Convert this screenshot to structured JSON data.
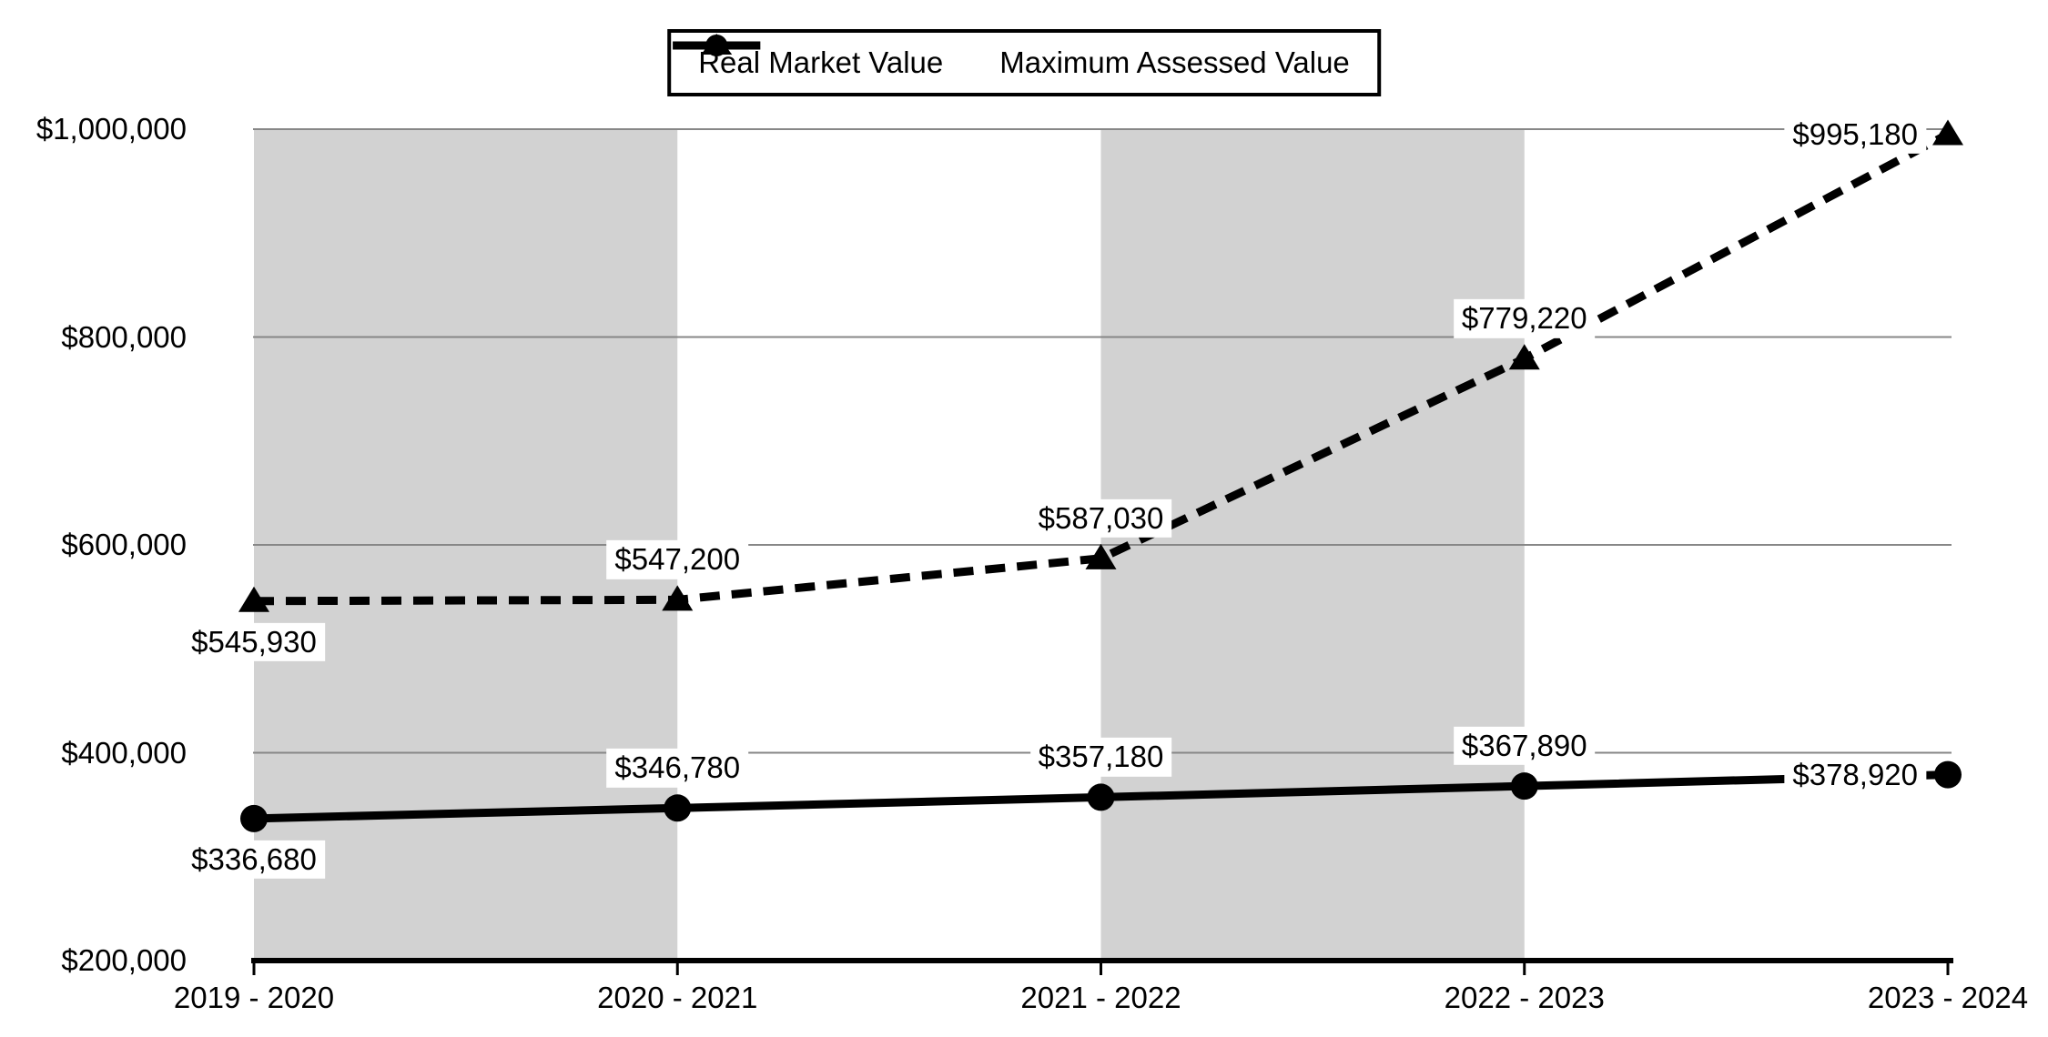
{
  "chart_data": {
    "type": "line",
    "title": "",
    "x_categories": [
      "2019 - 2020",
      "2020 - 2021",
      "2021 - 2022",
      "2022 - 2023",
      "2023 - 2024"
    ],
    "y_axis": {
      "min": 200000,
      "max": 1000000,
      "step": 200000,
      "tick_labels": [
        "$1,000,000",
        "$800,000",
        "$600,000",
        "$400,000",
        "$200,000"
      ]
    },
    "series": [
      {
        "name": "Real Market Value",
        "line_style": "dashed",
        "marker": "triangle",
        "color": "#000000",
        "values": [
          545930,
          547200,
          587030,
          779220,
          995180
        ],
        "point_labels": [
          "$545,930",
          "$547,200",
          "$587,030",
          "$779,220",
          "$995,180"
        ],
        "label_placements": [
          "below",
          "above",
          "above",
          "above",
          "left"
        ]
      },
      {
        "name": "Maximum Assessed Value",
        "line_style": "solid",
        "marker": "circle",
        "color": "#000000",
        "values": [
          336680,
          346780,
          357180,
          367890,
          378920
        ],
        "point_labels": [
          "$336,680",
          "$346,780",
          "$357,180",
          "$367,890",
          "$378,920"
        ],
        "label_placements": [
          "below",
          "above",
          "above",
          "above",
          "left"
        ]
      }
    ],
    "plot_bands": {
      "color": "#d2d2d2",
      "category_spans": [
        [
          0,
          1
        ],
        [
          2,
          3
        ]
      ]
    },
    "legend": {
      "position": "top-center",
      "border_color": "#000000"
    },
    "grid": true,
    "colors": {
      "background": "#ffffff",
      "gridline": "#878787",
      "axis": "#000000",
      "label_bg": "#ffffff",
      "text": "#000000"
    }
  }
}
